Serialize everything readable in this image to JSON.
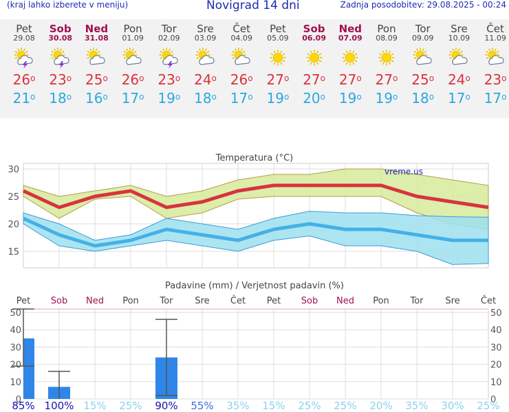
{
  "header": {
    "menu_hint": "(kraj lahko izberete v meniju)",
    "title": "Novigrad 14 dni",
    "updated": "Zadnja posodobitev: 29.08.2025 - 00:24"
  },
  "days": [
    {
      "name": "Pet",
      "date": "29.08",
      "weekend": false,
      "icon": "sun-cloud-lightning-icon",
      "max": "26",
      "min": "21"
    },
    {
      "name": "Sob",
      "date": "30.08",
      "weekend": true,
      "icon": "sun-cloud-lightning-icon",
      "max": "23",
      "min": "18"
    },
    {
      "name": "Ned",
      "date": "31.08",
      "weekend": true,
      "icon": "sun-cloud-icon",
      "max": "25",
      "min": "16"
    },
    {
      "name": "Pon",
      "date": "01.09",
      "weekend": false,
      "icon": "sun-cloud-icon",
      "max": "26",
      "min": "17"
    },
    {
      "name": "Tor",
      "date": "02.09",
      "weekend": false,
      "icon": "sun-cloud-lightning-icon",
      "max": "23",
      "min": "19"
    },
    {
      "name": "Sre",
      "date": "03.09",
      "weekend": false,
      "icon": "sun-cloud-icon",
      "max": "24",
      "min": "18"
    },
    {
      "name": "Čet",
      "date": "04.09",
      "weekend": false,
      "icon": "sun-cloud-icon",
      "max": "26",
      "min": "17"
    },
    {
      "name": "Pet",
      "date": "05.09",
      "weekend": false,
      "icon": "sun-icon",
      "max": "27",
      "min": "19"
    },
    {
      "name": "Sob",
      "date": "06.09",
      "weekend": true,
      "icon": "sun-icon",
      "max": "27",
      "min": "20"
    },
    {
      "name": "Ned",
      "date": "07.09",
      "weekend": true,
      "icon": "sun-icon",
      "max": "27",
      "min": "19"
    },
    {
      "name": "Pon",
      "date": "08.09",
      "weekend": false,
      "icon": "sun-icon",
      "max": "27",
      "min": "19"
    },
    {
      "name": "Tor",
      "date": "09.09",
      "weekend": false,
      "icon": "sun-cloud-icon",
      "max": "25",
      "min": "18"
    },
    {
      "name": "Sre",
      "date": "10.09",
      "weekend": false,
      "icon": "sun-cloud-icon",
      "max": "24",
      "min": "17"
    },
    {
      "name": "Čet",
      "date": "11.09",
      "weekend": false,
      "icon": "sun-cloud-icon",
      "max": "23",
      "min": "17"
    }
  ],
  "chart_data": [
    {
      "type": "line",
      "title": "Temperatura (°C)",
      "watermark": "vreme.us",
      "ylim": [
        12,
        31
      ],
      "yticks": [
        "15",
        "20",
        "25",
        "30"
      ],
      "series": [
        {
          "name": "max",
          "color": "#d8333f",
          "values": [
            26,
            23,
            25,
            26,
            23,
            24,
            26,
            27,
            27,
            27,
            27,
            25,
            24,
            23
          ]
        },
        {
          "name": "min",
          "color": "#45b0e8",
          "values": [
            21,
            18,
            16,
            17,
            19,
            18,
            17,
            19,
            20,
            19,
            19,
            18,
            17,
            17
          ]
        },
        {
          "name": "max_band_high",
          "values": [
            27,
            25,
            26,
            27,
            25,
            26,
            28,
            29,
            29,
            30,
            30,
            29,
            28,
            27
          ]
        },
        {
          "name": "max_band_low",
          "values": [
            25,
            21,
            24.5,
            25,
            21,
            22,
            24.5,
            25,
            25,
            25,
            25,
            22,
            20,
            19
          ]
        },
        {
          "name": "min_band_high",
          "values": [
            22,
            20,
            17,
            18,
            21,
            20,
            19,
            21,
            22.3,
            22,
            22,
            21.5,
            21.3,
            21.2
          ]
        },
        {
          "name": "min_band_low",
          "values": [
            20,
            16,
            15,
            16,
            17,
            16,
            15,
            17,
            17.8,
            16,
            16,
            15,
            12.6,
            12.8
          ]
        }
      ]
    },
    {
      "type": "bar",
      "title": "Padavine (mm) / Verjetnost padavin (%)",
      "ylim": [
        0,
        52
      ],
      "yticks": [
        "0",
        "10",
        "20",
        "30",
        "40",
        "50"
      ],
      "categories": [
        "Pet",
        "Sob",
        "Ned",
        "Pon",
        "Tor",
        "Sre",
        "Čet",
        "Pet",
        "Sob",
        "Ned",
        "Pon",
        "Tor",
        "Sre",
        "Čet"
      ],
      "weekend": [
        false,
        true,
        true,
        false,
        false,
        false,
        false,
        false,
        true,
        true,
        false,
        false,
        false,
        false
      ],
      "values": [
        35,
        7,
        0,
        0,
        24,
        0,
        0,
        0,
        0,
        0,
        0,
        0,
        0,
        0
      ],
      "error_low": [
        19,
        0,
        null,
        null,
        2,
        null,
        null,
        null,
        null,
        null,
        null,
        null,
        null,
        null
      ],
      "error_high": [
        52,
        16,
        null,
        null,
        46,
        null,
        null,
        null,
        null,
        null,
        null,
        null,
        null,
        null
      ],
      "probability": [
        "85%",
        "100%",
        "15%",
        "25%",
        "90%",
        "55%",
        "35%",
        "15%",
        "25%",
        "25%",
        "20%",
        "35%",
        "30%",
        "25%"
      ],
      "probability_values": [
        85,
        100,
        15,
        25,
        90,
        55,
        35,
        15,
        25,
        25,
        20,
        35,
        30,
        25
      ]
    }
  ]
}
